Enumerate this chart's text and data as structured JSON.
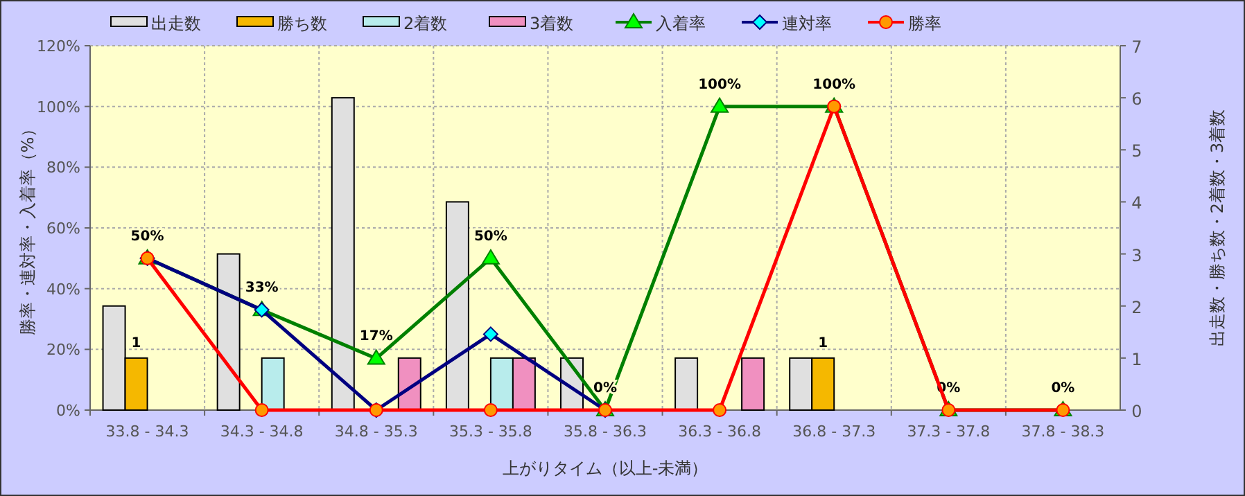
{
  "chart_data": {
    "type": "bar",
    "xlabel": "上がりタイム（以上-未満）",
    "ylabel": "勝率・連対率・入着率（%）",
    "y2label": "出走数・勝ち数・2着数・3着数",
    "categories": [
      "33.8 - 34.3",
      "34.3 - 34.8",
      "34.8 - 35.3",
      "35.3 - 35.8",
      "35.8 - 36.3",
      "36.3 - 36.8",
      "36.8 - 37.3",
      "37.3 - 37.8",
      "37.8 - 38.3"
    ],
    "ylim": [
      0,
      120
    ],
    "yticks": [
      {
        "value": 0,
        "label": "0%"
      },
      {
        "value": 20,
        "label": "20%"
      },
      {
        "value": 40,
        "label": "40%"
      },
      {
        "value": 60,
        "label": "60%"
      },
      {
        "value": 80,
        "label": "80%"
      },
      {
        "value": 100,
        "label": "100%"
      },
      {
        "value": 120,
        "label": "120%"
      }
    ],
    "y2lim": [
      0,
      7
    ],
    "y2ticks": [
      0,
      1,
      2,
      3,
      4,
      5,
      6,
      7
    ],
    "grid": true,
    "legend": "top",
    "series": [
      {
        "name": "出走数",
        "axis": "y2",
        "color": "#e0e0e0",
        "values": [
          2,
          3,
          6,
          4,
          1,
          1,
          1,
          0,
          0
        ]
      },
      {
        "name": "勝ち数",
        "axis": "y2",
        "color": "#f5b800",
        "values": [
          1,
          0,
          0,
          0,
          0,
          0,
          1,
          0,
          0
        ],
        "value_labels": [
          "1",
          null,
          null,
          null,
          null,
          null,
          "1",
          null,
          null
        ]
      },
      {
        "name": "2着数",
        "axis": "y2",
        "color": "#b8ecec",
        "values": [
          0,
          1,
          0,
          1,
          0,
          0,
          0,
          0,
          0
        ]
      },
      {
        "name": "3着数",
        "axis": "y2",
        "color": "#f090c0",
        "values": [
          0,
          0,
          1,
          1,
          0,
          1,
          0,
          0,
          0
        ]
      },
      {
        "name": "入着率",
        "type": "line",
        "color": "#008000",
        "marker": "triangle",
        "values": [
          50,
          33,
          17,
          50,
          0,
          100,
          100,
          0,
          0
        ],
        "value_labels": [
          "50%",
          "33%",
          "17%",
          "50%",
          "0%",
          "100%",
          "100%",
          "0%",
          "0%"
        ]
      },
      {
        "name": "連対率",
        "type": "line",
        "color": "#000080",
        "marker": "diamond",
        "values": [
          50,
          33,
          0,
          25,
          0,
          null,
          null,
          null,
          null
        ]
      },
      {
        "name": "勝率",
        "type": "line",
        "color": "#ff0000",
        "marker": "circle",
        "values": [
          50,
          0,
          0,
          0,
          0,
          0,
          100,
          0,
          0
        ]
      }
    ]
  }
}
